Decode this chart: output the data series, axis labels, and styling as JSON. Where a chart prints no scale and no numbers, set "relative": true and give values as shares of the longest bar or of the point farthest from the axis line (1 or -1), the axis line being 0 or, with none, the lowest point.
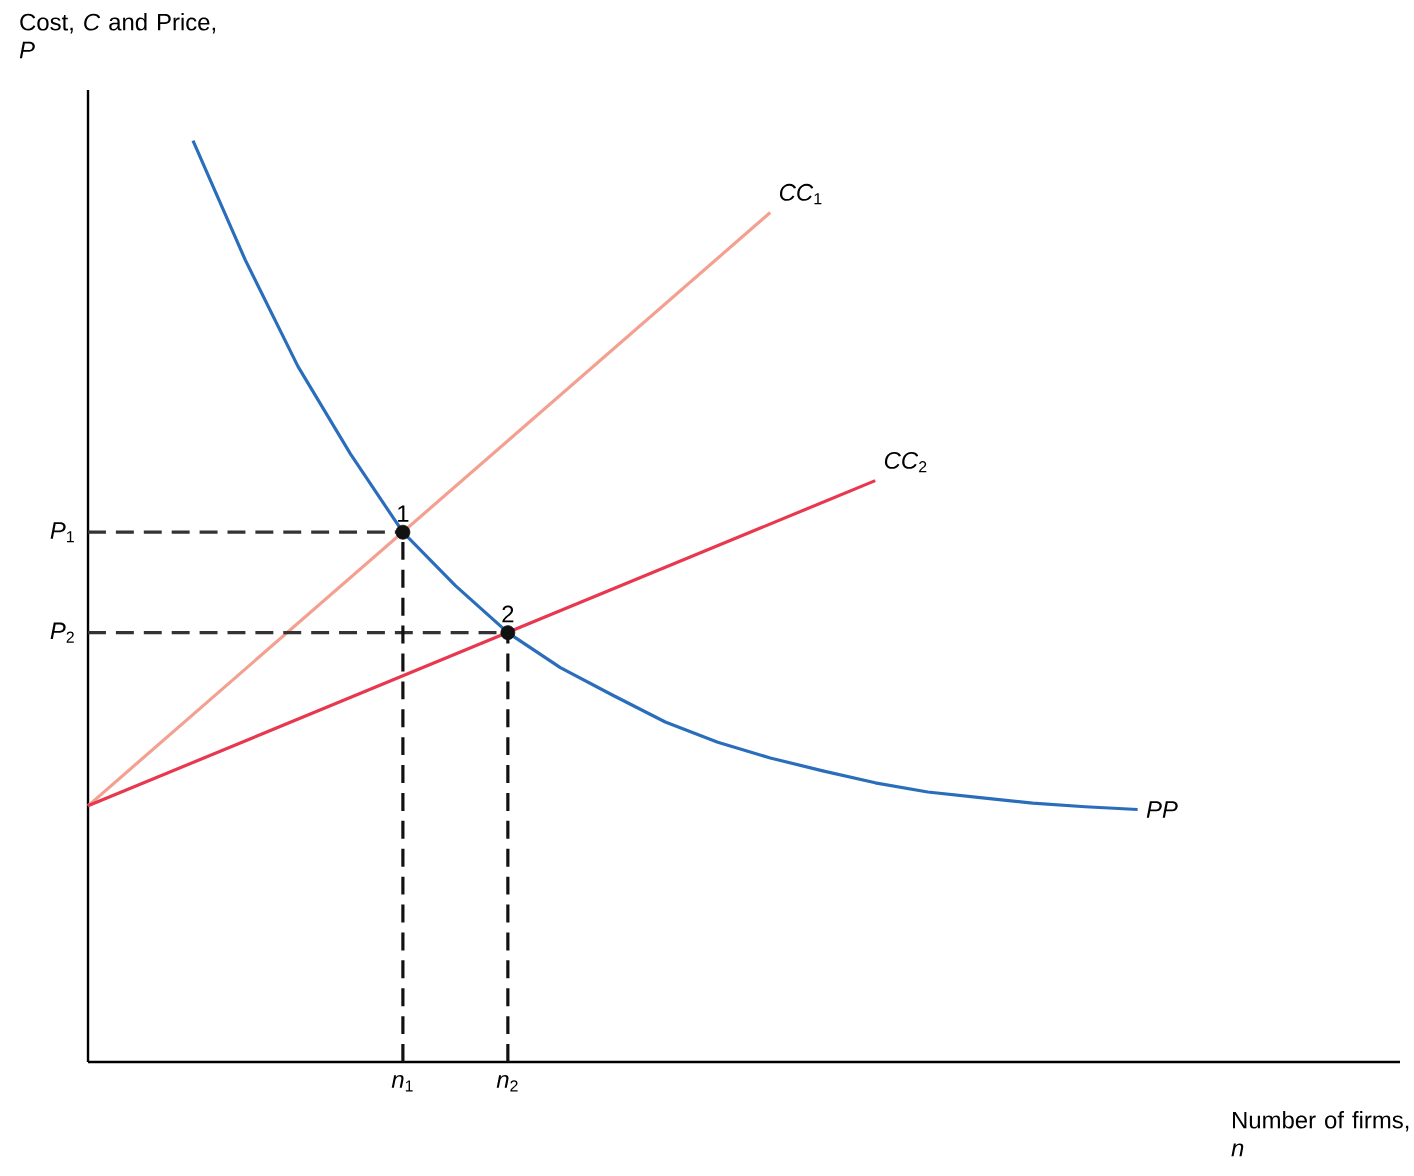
{
  "chart_data": {
    "type": "line",
    "relative": true,
    "legend": false,
    "grid": false,
    "ylabel": "Cost, *C* and Price, *P*",
    "xlabel": "Number of firms, *n*",
    "categories": [
      null,
      null,
      null,
      null,
      null,
      null,
      "*n*$_{1}$",
      null,
      "*n*$_{2}$",
      null,
      null,
      null,
      null,
      null,
      null,
      null,
      null,
      null,
      null,
      null,
      null,
      null,
      null,
      null,
      null,
      null
    ],
    "series": [
      {
        "name": "*PP*",
        "color": "#2a6ebb",
        "values": [
          null,
          null,
          1.0,
          0.87,
          0.755,
          0.66,
          0.575,
          0.517,
          0.466,
          0.428,
          0.398,
          0.369,
          0.347,
          0.33,
          0.316,
          0.303,
          0.293,
          0.287,
          0.281,
          0.277,
          0.274,
          null,
          null,
          null,
          null,
          null
        ]
      },
      {
        "name": "*CC*$_{1}$",
        "color": "#f4a090",
        "values": [
          0.278,
          null,
          null,
          null,
          null,
          null,
          null,
          null,
          null,
          null,
          null,
          null,
          null,
          0.922,
          null,
          null,
          null,
          null,
          null,
          null,
          null,
          null,
          null,
          null,
          null,
          null
        ]
      },
      {
        "name": "*CC*$_{2}$",
        "color": "#e8384f",
        "values": [
          0.278,
          null,
          null,
          null,
          null,
          null,
          null,
          null,
          null,
          null,
          null,
          null,
          null,
          null,
          null,
          0.631,
          null,
          null,
          null,
          null,
          null,
          null,
          null,
          null,
          null,
          null
        ]
      },
      {
        "line_style": "dashed",
        "color": "#333333",
        "values": [
          0.575,
          null,
          null,
          null,
          null,
          null,
          0.575,
          null,
          null,
          null,
          null,
          null,
          null,
          null,
          null,
          null,
          null,
          null,
          null,
          null,
          null,
          null,
          null,
          null,
          null,
          null
        ]
      },
      {
        "line_style": "dashed",
        "color": "#333333",
        "values": [
          0.466,
          null,
          null,
          null,
          null,
          null,
          null,
          null,
          0.466,
          null,
          null,
          null,
          null,
          null,
          null,
          null,
          null,
          null,
          null,
          null,
          null,
          null,
          null,
          null,
          null,
          null
        ]
      },
      {
        "type": "lollipop",
        "line_style": "dashed",
        "color": "#111111",
        "values": [
          null,
          null,
          null,
          null,
          null,
          null,
          0.575,
          null,
          0.466,
          null,
          null,
          null,
          null,
          null,
          null,
          null,
          null,
          null,
          null,
          null,
          null,
          null,
          null,
          null,
          null,
          null
        ]
      }
    ],
    "annotations": [
      {
        "text": "1",
        "x": "*n*$_{1}$",
        "y": 0.575
      },
      {
        "text": "2",
        "x": "*n*$_{2}$",
        "y": 0.466
      },
      "*P*$_{1}$",
      "*P*$_{2}$"
    ]
  }
}
